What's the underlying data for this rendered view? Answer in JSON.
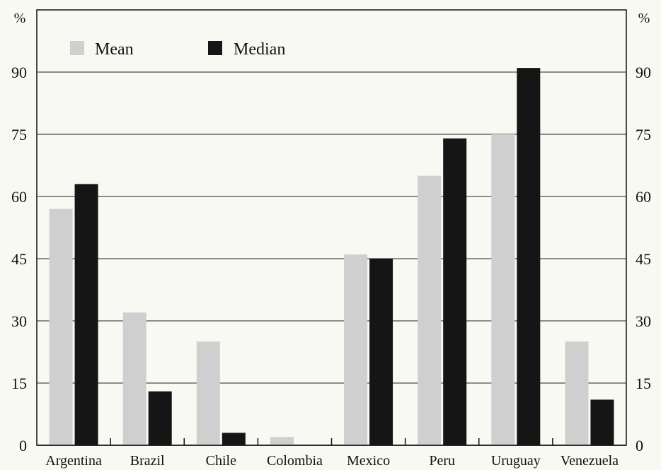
{
  "chart_data": {
    "type": "bar",
    "categories": [
      "Argentina",
      "Brazil",
      "Chile",
      "Colombia",
      "Mexico",
      "Peru",
      "Uruguay",
      "Venezuela"
    ],
    "series": [
      {
        "name": "Mean",
        "values": [
          57,
          32,
          25,
          2,
          46,
          65,
          75,
          25
        ],
        "color": "#cfcfcf"
      },
      {
        "name": "Median",
        "values": [
          63,
          13,
          3,
          0,
          45,
          74,
          91,
          11
        ],
        "color": "#151515"
      }
    ],
    "ylim": [
      0,
      105
    ],
    "yticks": [
      0,
      15,
      30,
      45,
      60,
      75,
      90
    ],
    "y_unit_left": "%",
    "y_unit_right": "%",
    "grid": true,
    "legend_position": "top-left",
    "background": "#f7f9f2"
  }
}
